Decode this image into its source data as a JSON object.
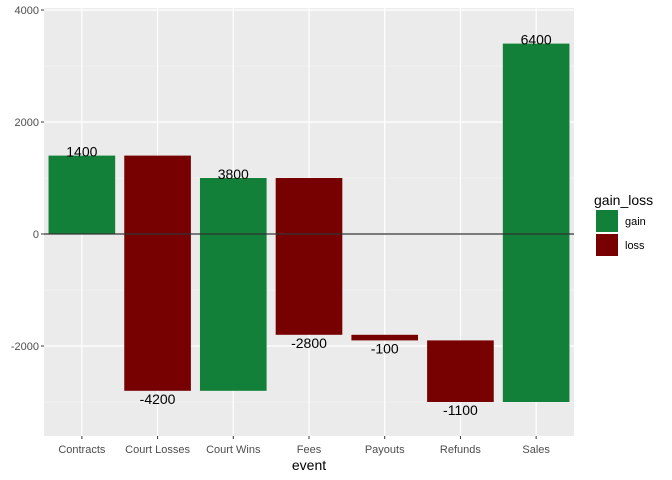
{
  "chart_data": {
    "type": "bar",
    "subtype": "waterfall",
    "xlabel": "event",
    "ylabel": "",
    "ylim": [
      -3600,
      4000
    ],
    "yticks": [
      -2000,
      0,
      2000,
      4000
    ],
    "yticks_labels": [
      "-2000",
      "0",
      "2000",
      "4000"
    ],
    "grid": true,
    "legend_position": "right",
    "legend_title": "gain_loss",
    "legend": [
      {
        "key": "gain",
        "label": "gain",
        "color": "#128038"
      },
      {
        "key": "loss",
        "label": "loss",
        "color": "#770000"
      }
    ],
    "categories": [
      "Contracts",
      "Court Losses",
      "Court Wins",
      "Fees",
      "Payouts",
      "Refunds",
      "Sales"
    ],
    "bars": [
      {
        "event": "Contracts",
        "start": 0,
        "end": 1400,
        "label": "1400",
        "group": "gain"
      },
      {
        "event": "Court Losses",
        "start": 1400,
        "end": -2800,
        "label": "-4200",
        "group": "loss"
      },
      {
        "event": "Court Wins",
        "start": -2800,
        "end": 1000,
        "label": "3800",
        "group": "gain"
      },
      {
        "event": "Fees",
        "start": 1000,
        "end": -1800,
        "label": "-2800",
        "group": "loss"
      },
      {
        "event": "Payouts",
        "start": -1800,
        "end": -1900,
        "label": "-100",
        "group": "loss"
      },
      {
        "event": "Refunds",
        "start": -1900,
        "end": -3000,
        "label": "-1100",
        "group": "loss"
      },
      {
        "event": "Sales",
        "start": -3000,
        "end": 3400,
        "label": "6400",
        "group": "gain"
      }
    ],
    "zero_line": 0
  }
}
